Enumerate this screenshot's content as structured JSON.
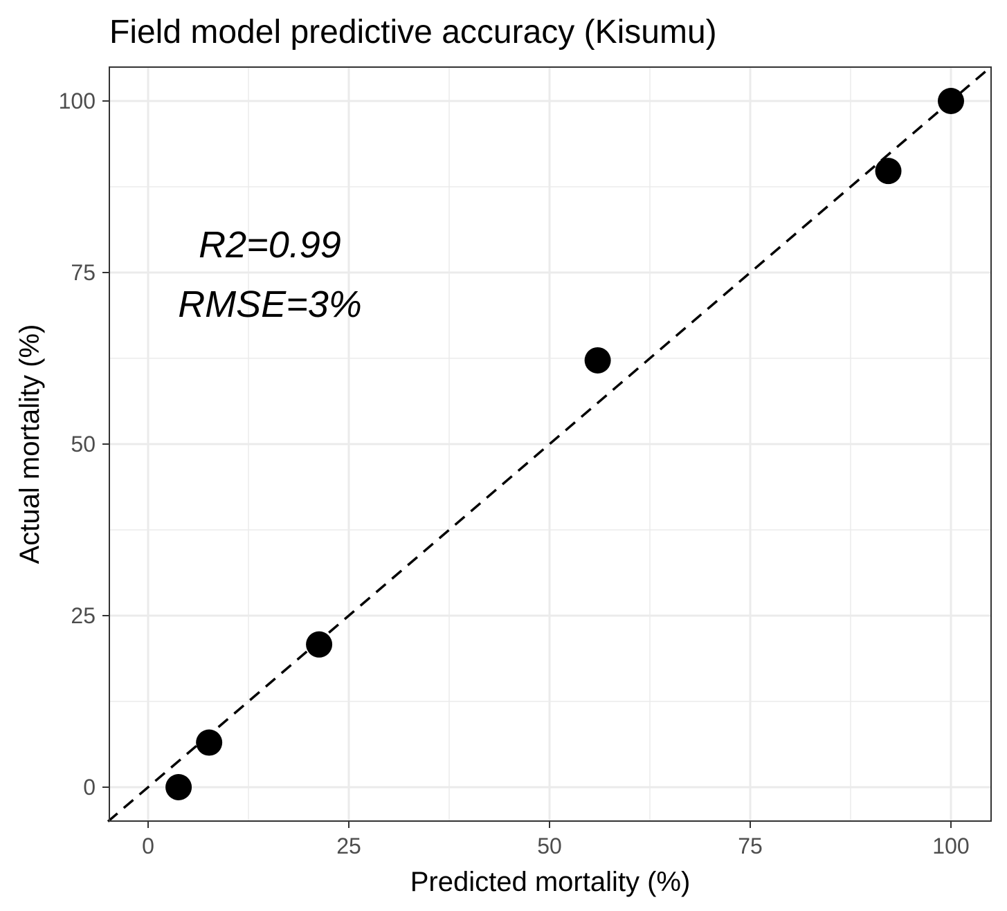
{
  "chart_data": {
    "type": "scatter",
    "title": "Field model predictive accuracy (Kisumu)",
    "xlabel": "Predicted mortality (%)",
    "ylabel": "Actual mortality (%)",
    "xlim": [
      -5,
      105
    ],
    "ylim": [
      -5,
      105
    ],
    "x_ticks": [
      0,
      25,
      50,
      75,
      100
    ],
    "y_ticks": [
      0,
      25,
      50,
      75,
      100
    ],
    "grid": true,
    "points": [
      {
        "x": 3.8,
        "y": 0
      },
      {
        "x": 7.6,
        "y": 6.5
      },
      {
        "x": 21.3,
        "y": 20.8
      },
      {
        "x": 56.0,
        "y": 62.2
      },
      {
        "x": 92.2,
        "y": 89.8
      },
      {
        "x": 100,
        "y": 100
      }
    ],
    "reference_line": {
      "style": "dashed",
      "slope": 1,
      "intercept": 0
    },
    "annotations": [
      "R2=0.99",
      "RMSE=3%"
    ],
    "colors": {
      "points": "#000000",
      "grid": "#ebebeb",
      "panel_border": "#333333"
    }
  }
}
